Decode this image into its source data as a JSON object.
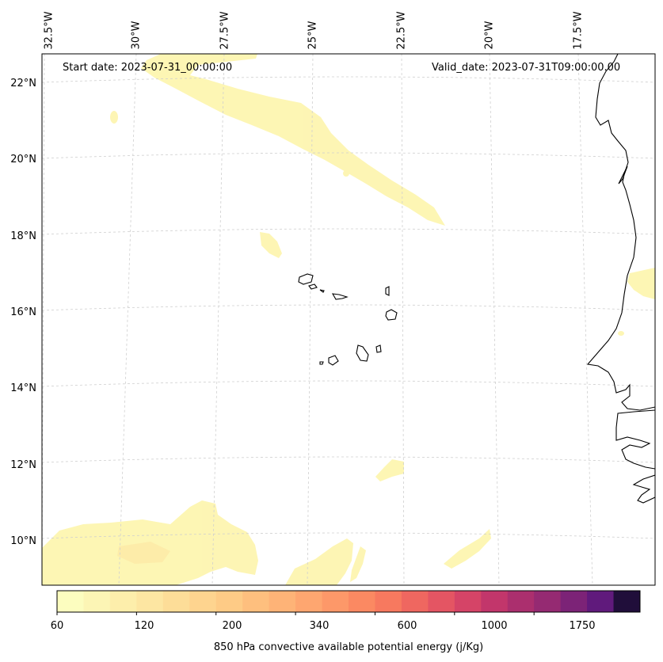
{
  "map": {
    "start_date": "Start date: 2023-07-31_00:00:00",
    "valid_date": "Valid_date: 2023-07-31T09:00:00.00",
    "lon_labels": [
      "32.5°W",
      "30°W",
      "27.5°W",
      "25°W",
      "22.5°W",
      "20°W",
      "17.5°W"
    ],
    "lat_labels": [
      "22°N",
      "20°N",
      "18°N",
      "16°N",
      "14°N",
      "12°N",
      "10°N"
    ],
    "colorbar": {
      "title": "850 hPa convective available potential energy (j/Kg)",
      "tick_labels": [
        "60",
        "120",
        "200",
        "340",
        "600",
        "1000",
        "1750"
      ],
      "colors": [
        "#fcfdbf",
        "#fcf5b5",
        "#fdeeab",
        "#fde6a2",
        "#fddd98",
        "#fed48f",
        "#fecb86",
        "#febf7e",
        "#feb377",
        "#fea670",
        "#fd9869",
        "#fb8962",
        "#f7795f",
        "#ef6760",
        "#e45563",
        "#d54467",
        "#c2366b",
        "#ab2f6e",
        "#952a72",
        "#7c2377",
        "#601a7c",
        "#200e3a"
      ]
    }
  }
}
